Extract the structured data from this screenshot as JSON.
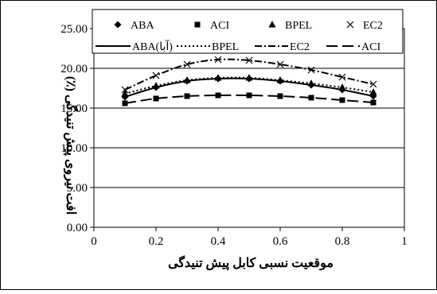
{
  "chart_data": {
    "type": "line",
    "xlabel": "موقعیت نسبی کابل پیش تنیدگی",
    "ylabel": "افت نیروی پیش تنیدگی (٪)",
    "xlim": [
      0,
      1
    ],
    "ylim": [
      0,
      25
    ],
    "x_ticks": [
      "0",
      "0.2",
      "0.4",
      "0.6",
      "0.8",
      "1"
    ],
    "y_ticks": [
      "0.00",
      "5.00",
      "10.00",
      "15.00",
      "20.00",
      "25.00"
    ],
    "grid": "horizontal",
    "legend_position": "top",
    "x": [
      0.1,
      0.2,
      0.3,
      0.4,
      0.5,
      0.6,
      0.7,
      0.8,
      0.9
    ],
    "point_series": [
      {
        "name": "ABA",
        "marker": "diamond",
        "values": [
          16.4,
          17.6,
          18.4,
          18.7,
          18.7,
          18.4,
          17.9,
          17.3,
          16.5
        ]
      },
      {
        "name": "ACI",
        "marker": "square",
        "values": [
          15.6,
          16.2,
          16.5,
          16.6,
          16.6,
          16.5,
          16.3,
          16.0,
          15.7
        ]
      },
      {
        "name": "BPEL",
        "marker": "triangle",
        "values": [
          16.8,
          17.8,
          18.5,
          18.8,
          18.8,
          18.5,
          18.1,
          17.6,
          17.0
        ]
      },
      {
        "name": "EC2",
        "marker": "x",
        "values": [
          17.3,
          19.1,
          20.5,
          21.1,
          21.0,
          20.5,
          19.8,
          18.9,
          18.0
        ]
      }
    ],
    "line_series": [
      {
        "name": "ABA(آبا)",
        "dash": "solid",
        "values": [
          16.4,
          17.6,
          18.4,
          18.7,
          18.7,
          18.4,
          17.9,
          17.3,
          16.5
        ]
      },
      {
        "name": "BPEL",
        "dash": "dotted",
        "values": [
          16.8,
          17.8,
          18.5,
          18.8,
          18.8,
          18.5,
          18.1,
          17.6,
          17.0
        ]
      },
      {
        "name": "EC2",
        "dash": "dash-dot",
        "values": [
          17.3,
          19.1,
          20.5,
          21.1,
          21.0,
          20.5,
          19.8,
          18.9,
          18.0
        ]
      },
      {
        "name": "ACI",
        "dash": "long-dash",
        "values": [
          15.6,
          16.2,
          16.5,
          16.6,
          16.6,
          16.5,
          16.3,
          16.0,
          15.7
        ]
      }
    ]
  }
}
